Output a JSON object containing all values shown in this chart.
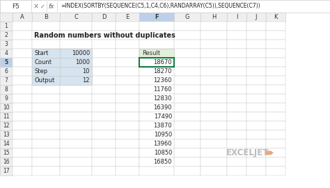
{
  "formula_bar_cell": "F5",
  "formula_bar_formula": "=INDEX(SORTBY(SEQUENCE(C5,1,C4,C6),RANDARRAY(C5)),SEQUENCE(C7))",
  "title": "Random numbers without duplicates",
  "param_labels": [
    "Start",
    "Count",
    "Step",
    "Output"
  ],
  "param_values": [
    "10000",
    "1000",
    "10",
    "12"
  ],
  "result_label": "Result",
  "result_values": [
    "18670",
    "18270",
    "12360",
    "11760",
    "12830",
    "16390",
    "17490",
    "13870",
    "10950",
    "13960",
    "10850",
    "16850"
  ],
  "col_headers": [
    "A",
    "B",
    "C",
    "D",
    "E",
    "F",
    "G",
    "H",
    "I",
    "J",
    "K"
  ],
  "row_headers": [
    "1",
    "2",
    "3",
    "4",
    "5",
    "6",
    "7",
    "8",
    "9",
    "10",
    "11",
    "12",
    "13",
    "14",
    "15",
    "16",
    "17"
  ],
  "bg_color": "#FFFFFF",
  "grid_color": "#C8C8C8",
  "header_bg": "#EFEFEF",
  "active_col_bg": "#BDD0E9",
  "active_row_bg": "#BDD0E9",
  "active_cell_border": "#107C41",
  "param_cell_bg": "#D6E4F0",
  "result_header_bg": "#E2EFDA",
  "formula_bar_bg": "#FFFFFF",
  "formula_bar_border": "#CCCCCC",
  "exceljet_color": "#BBBBBB",
  "exceljet_icon_color": "#E8A87C"
}
